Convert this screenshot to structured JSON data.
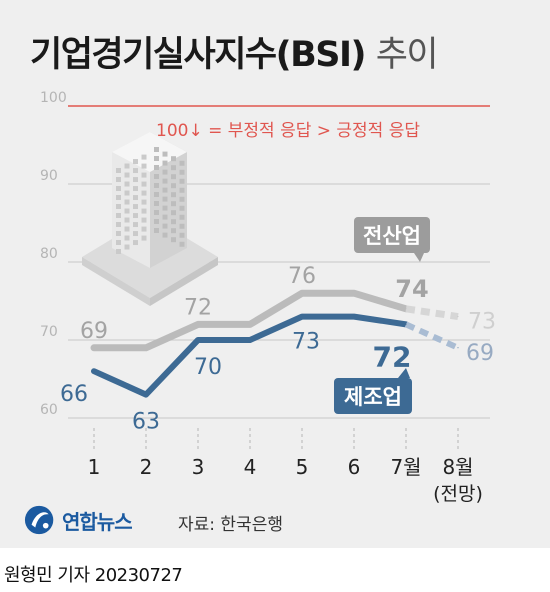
{
  "title": "기업경기실사지수(BSI)",
  "title_suffix": "추이",
  "note": "100↓ = 부정적 응답 > 긍정적 응답",
  "source": "자료: 한국은행",
  "logo": "연합뉴스",
  "credit": "원형민 기자  20230727",
  "colors": {
    "all_industry": "#bbbbbb",
    "manufacturing": "#3d6a94",
    "reference_line": "#e0564f",
    "background": "#efefef"
  },
  "chart_data": {
    "type": "line",
    "categories": [
      "1",
      "2",
      "3",
      "4",
      "5",
      "6",
      "7월",
      "8월"
    ],
    "category_sublabels": [
      "",
      "",
      "",
      "",
      "",
      "",
      "",
      "(전망)"
    ],
    "y_ticks": [
      "60",
      "70",
      "80",
      "90",
      "100"
    ],
    "ylim": [
      60,
      100
    ],
    "reference_line": 100,
    "grid": true,
    "series": [
      {
        "name": "전산업",
        "key": "all",
        "values": [
          69,
          69,
          72,
          72,
          76,
          76,
          74,
          73
        ],
        "labels": [
          "69",
          "",
          "72",
          "",
          "76",
          "",
          "74",
          "73"
        ],
        "forecast_from_index": 6
      },
      {
        "name": "제조업",
        "key": "mfg",
        "values": [
          66,
          63,
          70,
          70,
          73,
          73,
          72,
          69
        ],
        "labels": [
          "66",
          "63",
          "70",
          "",
          "73",
          "",
          "72",
          "69"
        ],
        "forecast_from_index": 6
      }
    ]
  }
}
